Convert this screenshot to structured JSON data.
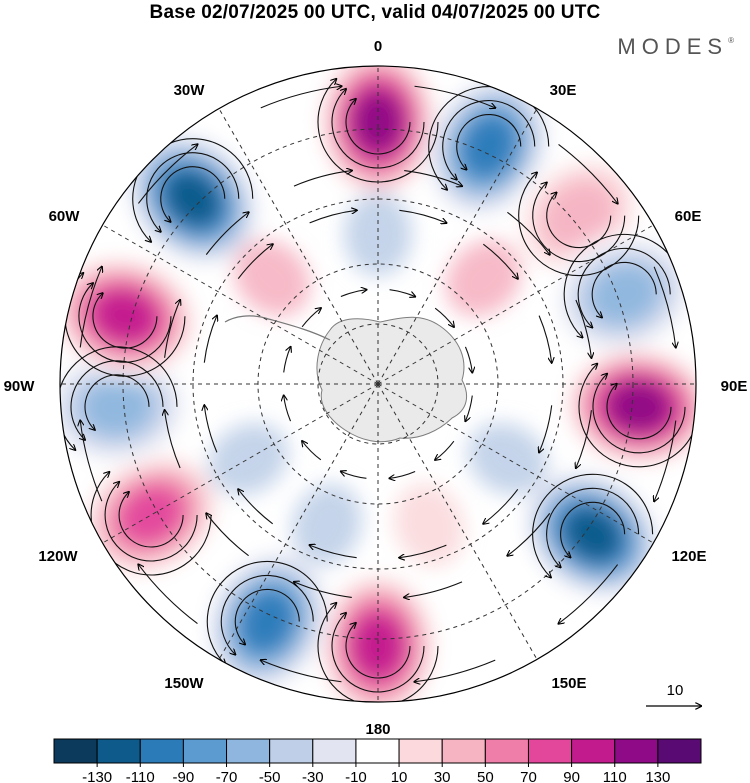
{
  "title": "Base 02/07/2025 00 UTC, valid 04/07/2025 00 UTC",
  "brand": "MODES",
  "brand_mark": "®",
  "longitude_labels": {
    "lon_0": "0",
    "lon_30e": "30E",
    "lon_60e": "60E",
    "lon_90e": "90E",
    "lon_120e": "120E",
    "lon_150e": "150E",
    "lon_180": "180",
    "lon_150w": "150W",
    "lon_120w": "120W",
    "lon_90w": "90W",
    "lon_60w": "60W",
    "lon_30w": "30W"
  },
  "reference_vector_label": "10",
  "colorbar": {
    "colors": [
      "#0b3a5c",
      "#0e5a8a",
      "#2b7bb9",
      "#5b9bd0",
      "#8eb6de",
      "#bfcfe8",
      "#e2e4f1",
      "#ffffff",
      "#fbd9dc",
      "#f6b3c2",
      "#ef7fa8",
      "#e2479c",
      "#c21b8e",
      "#8e0a86",
      "#5a0a73"
    ],
    "tick_labels": [
      "-130",
      "-110",
      "-90",
      "-70",
      "-50",
      "-30",
      "-10",
      "10",
      "30",
      "50",
      "70",
      "90",
      "110",
      "130"
    ]
  },
  "chart_data": {
    "type": "heatmap",
    "projection": "south polar stereographic",
    "field": "anomaly with streamlines",
    "anomaly_centers": [
      {
        "lon": 0,
        "sign": "positive",
        "strength": 110
      },
      {
        "lon": 25,
        "sign": "negative",
        "strength": -90
      },
      {
        "lon": 50,
        "sign": "positive",
        "strength": 30
      },
      {
        "lon": 70,
        "sign": "negative",
        "strength": -50
      },
      {
        "lon": 95,
        "sign": "positive",
        "strength": 110
      },
      {
        "lon": 125,
        "sign": "negative",
        "strength": -110
      },
      {
        "lon": 180,
        "sign": "positive",
        "strength": 90
      },
      {
        "lon": -155,
        "sign": "negative",
        "strength": -90
      },
      {
        "lon": -120,
        "sign": "positive",
        "strength": 70
      },
      {
        "lon": -95,
        "sign": "negative",
        "strength": -50
      },
      {
        "lon": -75,
        "sign": "positive",
        "strength": 90
      },
      {
        "lon": -45,
        "sign": "negative",
        "strength": -110
      }
    ]
  }
}
